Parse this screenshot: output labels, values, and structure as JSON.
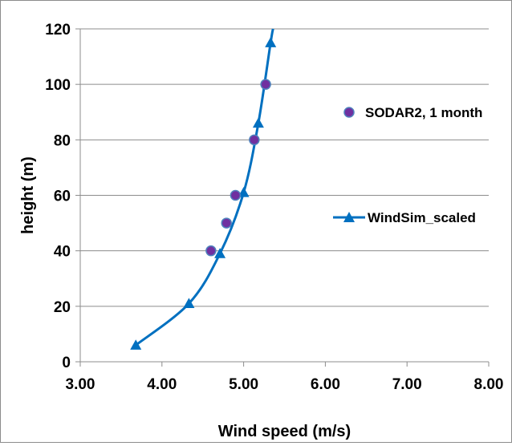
{
  "chart_data": {
    "type": "scatter",
    "title": "",
    "xlabel": "Wind speed (m/s)",
    "ylabel": "height (m)",
    "xlim": [
      3.0,
      8.0
    ],
    "ylim": [
      0,
      120
    ],
    "x_ticks": [
      "3.00",
      "4.00",
      "5.00",
      "6.00",
      "7.00",
      "8.00"
    ],
    "y_ticks": [
      "0",
      "20",
      "40",
      "60",
      "80",
      "100",
      "120"
    ],
    "grid": "horizontal",
    "series": [
      {
        "name": "SODAR2, 1 month",
        "type": "scatter",
        "marker": "circle",
        "color": "#7030a0",
        "edge_color": "#4f81bd",
        "points": [
          {
            "x": 4.6,
            "y": 40
          },
          {
            "x": 4.79,
            "y": 50
          },
          {
            "x": 4.9,
            "y": 60
          },
          {
            "x": 5.13,
            "y": 80
          },
          {
            "x": 5.27,
            "y": 100
          }
        ]
      },
      {
        "name": "WindSim_scaled",
        "type": "line",
        "marker": "triangle",
        "color": "#0070c0",
        "points": [
          {
            "x": 3.68,
            "y": 6
          },
          {
            "x": 4.33,
            "y": 21
          },
          {
            "x": 4.71,
            "y": 39
          },
          {
            "x": 5.0,
            "y": 61
          },
          {
            "x": 5.18,
            "y": 86
          },
          {
            "x": 5.33,
            "y": 115
          }
        ],
        "curve_end": {
          "x": 5.36,
          "y": 120
        }
      }
    ],
    "legend": {
      "placement": "right"
    }
  }
}
